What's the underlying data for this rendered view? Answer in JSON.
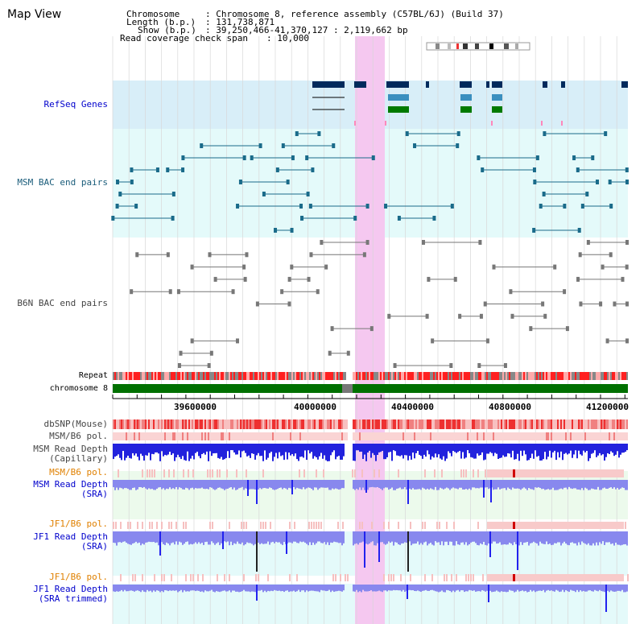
{
  "app_title": "Map View",
  "info": {
    "chromosome_label": "Chromosome",
    "chromosome_value": ": Chromosome 8, reference assembly (C57BL/6J) (Build 37)",
    "length_label": "Length (b.p.)",
    "length_value": ": 131,738,871",
    "show_label": "Show (b.p.)",
    "show_value": ": 39,250,466-41,370,127 : 2,119,662 bp",
    "coverage_label": "Read coverage check span",
    "coverage_value": ": 10,000"
  },
  "tracks": {
    "refseq": "RefSeq Genes",
    "msm_bac": "MSM BAC end pairs",
    "b6n_bac": "B6N BAC end pairs",
    "repeat": "Repeat",
    "chromosome": "chromosome 8",
    "dbsnp": "dbSNP(Mouse)",
    "msm_b6_pol_1": "MSM/B6 pol.",
    "msm_read_depth_cap_1": "MSM Read Depth",
    "msm_read_depth_cap_2": "(Capillary)",
    "msm_b6_pol_2": "MSM/B6 pol.",
    "msm_read_depth_sra_1": "MSM Read Depth",
    "msm_read_depth_sra_2": "(SRA)",
    "jf1_b6_pol_1": "JF1/B6 pol.",
    "jf1_read_depth_sra_1": "JF1 Read Depth",
    "jf1_read_depth_sra_2": "(SRA)",
    "jf1_b6_pol_2": "JF1/B6 pol.",
    "jf1_read_depth_trim_1": "JF1 Read Depth",
    "jf1_read_depth_trim_2": "(SRA trimmed)"
  },
  "axis": {
    "ticks": [
      "39600000",
      "40000000",
      "40400000",
      "40800000",
      "41200000"
    ]
  },
  "colors": {
    "highlight": "#f5c8f0",
    "refseq_bg": "#d8eef8",
    "track_bg": "#e4fafa",
    "gene_dark": "#002a5c",
    "gene_mid": "#3a8fbf",
    "gene_green": "#007a00",
    "bac_msm": "#1a6b8a",
    "bac_b6n": "#777777",
    "chromosome_bar": "#007000",
    "depth_blue": "#3333ee"
  }
}
